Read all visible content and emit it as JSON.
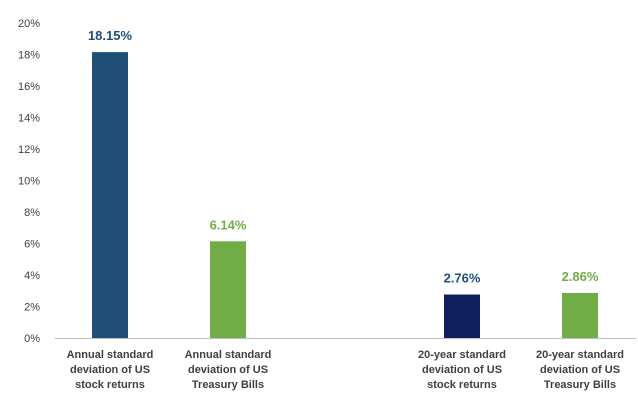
{
  "chart_data": {
    "type": "bar",
    "title": "",
    "xlabel": "",
    "ylabel": "",
    "ylim": [
      0,
      20
    ],
    "y_ticks": [
      "0%",
      "2%",
      "4%",
      "6%",
      "8%",
      "10%",
      "12%",
      "14%",
      "16%",
      "18%",
      "20%"
    ],
    "y_tick_values": [
      0,
      2,
      4,
      6,
      8,
      10,
      12,
      14,
      16,
      18,
      20
    ],
    "grid": false,
    "legend": "none",
    "categories": [
      [
        "Annual standard",
        "deviation of US",
        "stock returns"
      ],
      [
        "Annual standard",
        "deviation of US",
        "Treasury Bills"
      ],
      [
        "20-year standard",
        "deviation of US",
        "stock returns"
      ],
      [
        "20-year standard",
        "deviation of US",
        "Treasury Bills"
      ]
    ],
    "values": [
      18.15,
      6.14,
      2.76,
      2.86
    ],
    "data_labels": [
      "18.15%",
      "6.14%",
      "2.76%",
      "2.86%"
    ],
    "bar_colors": [
      "#1f4e79",
      "#70ad47",
      "#0d1f5c",
      "#70ad47"
    ],
    "label_colors": [
      "#1f4e79",
      "#70ad47",
      "#1f4e79",
      "#70ad47"
    ]
  }
}
